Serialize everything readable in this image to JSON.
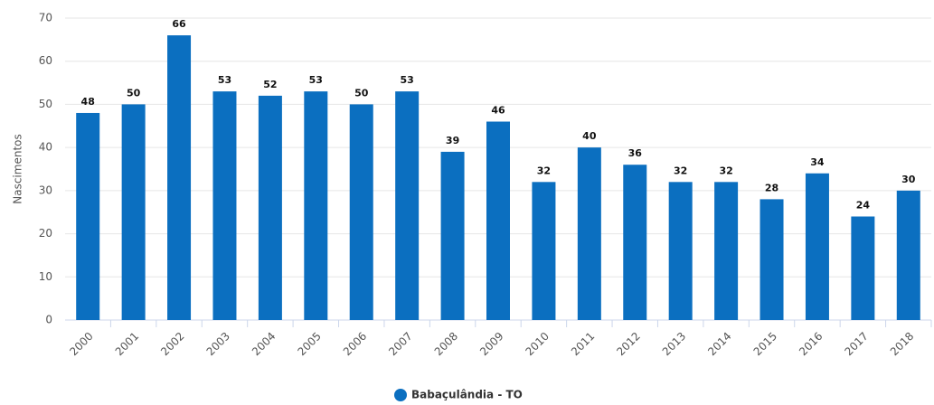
{
  "chart_data": {
    "type": "bar",
    "y_label": "Nascimentos",
    "categories": [
      "2000",
      "2001",
      "2002",
      "2003",
      "2004",
      "2005",
      "2006",
      "2007",
      "2008",
      "2009",
      "2010",
      "2011",
      "2012",
      "2013",
      "2014",
      "2015",
      "2016",
      "2017",
      "2018"
    ],
    "series": [
      {
        "name": "Babaçulândia - TO",
        "color": "#0b6fc0",
        "values": [
          48,
          50,
          66,
          53,
          52,
          53,
          50,
          53,
          39,
          46,
          32,
          40,
          36,
          32,
          32,
          28,
          34,
          24,
          30
        ]
      }
    ],
    "ylim": [
      0,
      70
    ],
    "yticks": [
      0,
      10,
      20,
      30,
      40,
      50,
      60,
      70
    ],
    "grid": true,
    "legend": "bottom"
  }
}
